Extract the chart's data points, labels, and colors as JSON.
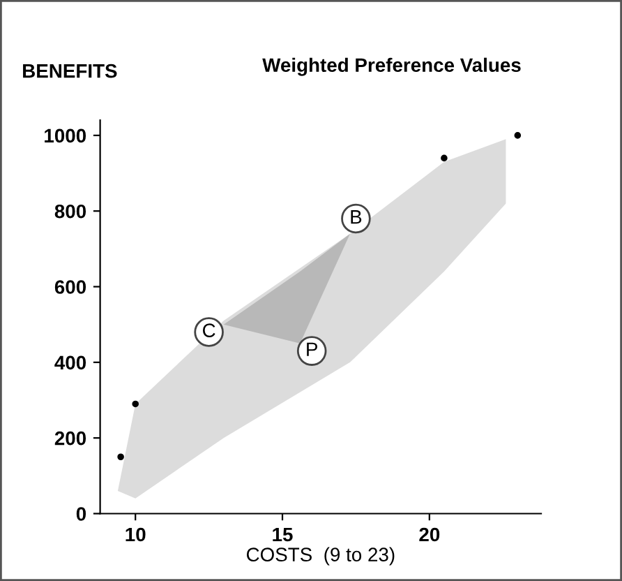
{
  "chart_data": {
    "type": "scatter",
    "title": "Weighted Preference Values",
    "xlabel": "COSTS  (9 to 23)",
    "ylabel": "BENEFITS",
    "xlim": [
      8.8,
      23.8
    ],
    "ylim": [
      0,
      1040
    ],
    "xticks": [
      10,
      15,
      20
    ],
    "yticks": [
      0,
      200,
      400,
      600,
      800,
      1000
    ],
    "grid": false,
    "legend": false,
    "series": [
      {
        "type": "area",
        "color": "#dcdcdc",
        "x": [
          9.4,
          10,
          13,
          17.3,
          20.5,
          22.6
        ],
        "values": [
          null,
          null,
          null,
          null,
          null,
          null
        ],
        "lower": [
          60,
          40,
          200,
          400,
          640,
          820
        ],
        "upper": [
          60,
          290,
          510,
          740,
          930,
          990
        ]
      },
      {
        "type": "area",
        "color": "#b8b8b8",
        "x": [
          13,
          15.6,
          17.3
        ],
        "values": [
          null,
          null,
          null
        ],
        "lower": [
          500,
          450,
          740
        ],
        "upper": [
          500,
          640,
          740
        ]
      },
      {
        "type": "scatter",
        "color": "#000000",
        "marker": "circle",
        "x": [
          9.5,
          10,
          20.5,
          23
        ],
        "values": [
          150,
          290,
          940,
          1000
        ]
      }
    ],
    "annotations": [
      {
        "text": "C",
        "x": 12.5,
        "y": 480
      },
      {
        "text": "P",
        "x": 16,
        "y": 430
      },
      {
        "text": "B",
        "x": 17.5,
        "y": 780
      }
    ]
  }
}
